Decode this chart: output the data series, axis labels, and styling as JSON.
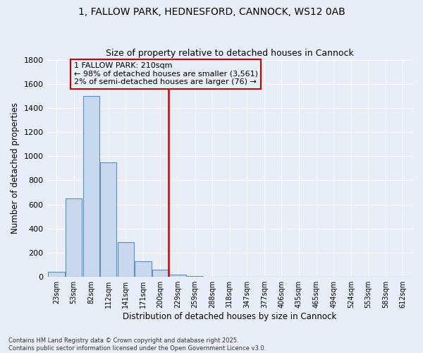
{
  "title1": "1, FALLOW PARK, HEDNESFORD, CANNOCK, WS12 0AB",
  "title2": "Size of property relative to detached houses in Cannock",
  "xlabel": "Distribution of detached houses by size in Cannock",
  "ylabel": "Number of detached properties",
  "annotation_line1": "1 FALLOW PARK: 210sqm",
  "annotation_line2": "← 98% of detached houses are smaller (3,561)",
  "annotation_line3": "2% of semi-detached houses are larger (76) →",
  "bins": [
    "23sqm",
    "53sqm",
    "82sqm",
    "112sqm",
    "141sqm",
    "171sqm",
    "200sqm",
    "229sqm",
    "259sqm",
    "288sqm",
    "318sqm",
    "347sqm",
    "377sqm",
    "406sqm",
    "435sqm",
    "465sqm",
    "494sqm",
    "524sqm",
    "553sqm",
    "583sqm",
    "612sqm"
  ],
  "values": [
    40,
    650,
    1500,
    950,
    290,
    130,
    60,
    20,
    5,
    0,
    0,
    0,
    0,
    0,
    0,
    0,
    0,
    0,
    0,
    0,
    0
  ],
  "bar_color": "#c8d8ee",
  "bar_edge_color": "#5a8fc0",
  "vline_color": "#cc0000",
  "annotation_box_color": "#cc0000",
  "ylim": [
    0,
    1800
  ],
  "yticks": [
    0,
    200,
    400,
    600,
    800,
    1000,
    1200,
    1400,
    1600,
    1800
  ],
  "background_color": "#e8eef8",
  "grid_color": "#ffffff",
  "footer1": "Contains HM Land Registry data © Crown copyright and database right 2025.",
  "footer2": "Contains public sector information licensed under the Open Government Licence v3.0."
}
